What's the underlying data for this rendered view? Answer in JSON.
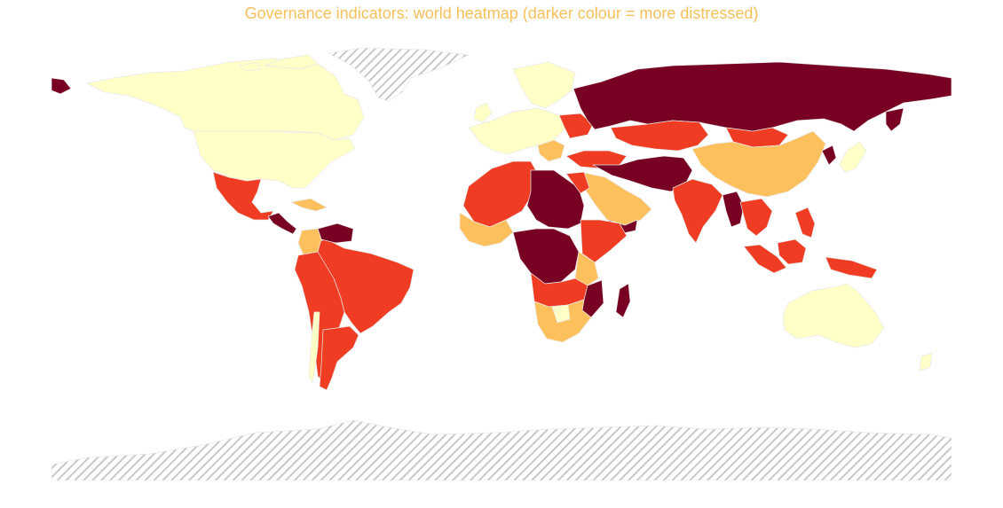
{
  "title": "Governance indicators: world heatmap (darker colour = more distressed)",
  "colors": {
    "title": "#f6c05a",
    "no_data_hatch": "#c8c8c8",
    "tier_1": "#ffffc8",
    "tier_2": "#fec05c",
    "tier_3": "#f03c23",
    "tier_4": "#780022"
  },
  "chart_data": {
    "type": "heatmap",
    "title": "Governance indicators: world heatmap (darker colour = more distressed)",
    "scale": "darker colour = more distressed",
    "tiers": [
      "tier_1",
      "tier_2",
      "tier_3",
      "tier_4"
    ],
    "no_data_regions": [
      "Greenland",
      "Antarctica"
    ]
  }
}
